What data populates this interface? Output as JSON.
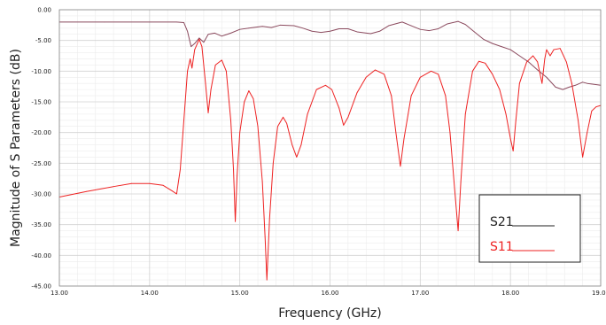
{
  "chart_data": {
    "type": "line",
    "xlabel": "Frequency (GHz)",
    "ylabel": "Magnitude of S Parameters (dB)",
    "xlim": [
      13.0,
      19.0
    ],
    "ylim": [
      -45.0,
      0.0
    ],
    "x_ticks": [
      13.0,
      14.0,
      15.0,
      16.0,
      17.0,
      18.0,
      19.0
    ],
    "x_tick_labels": [
      "13.00",
      "14.00",
      "15.00",
      "16.00",
      "17.00",
      "18.00",
      "19.00"
    ],
    "y_ticks": [
      0,
      -5,
      -10,
      -15,
      -20,
      -25,
      -30,
      -35,
      -40,
      -45
    ],
    "y_tick_labels": [
      "0.00",
      "-5.00",
      "-10.00",
      "-15.00",
      "-20.00",
      "-25.00",
      "-30.00",
      "-35.00",
      "-40.00",
      "-45.00"
    ],
    "grid": true,
    "legend_position": "bottom-right",
    "series": [
      {
        "name": "S21",
        "color": "#8b4a5e",
        "points": [
          [
            13.0,
            -2.0
          ],
          [
            13.5,
            -2.0
          ],
          [
            14.0,
            -2.0
          ],
          [
            14.3,
            -2.0
          ],
          [
            14.38,
            -2.1
          ],
          [
            14.42,
            -3.5
          ],
          [
            14.46,
            -6.0
          ],
          [
            14.5,
            -5.5
          ],
          [
            14.55,
            -4.6
          ],
          [
            14.6,
            -5.3
          ],
          [
            14.65,
            -4.0
          ],
          [
            14.72,
            -3.8
          ],
          [
            14.8,
            -4.3
          ],
          [
            14.9,
            -3.8
          ],
          [
            15.0,
            -3.2
          ],
          [
            15.1,
            -3.0
          ],
          [
            15.25,
            -2.7
          ],
          [
            15.35,
            -2.9
          ],
          [
            15.45,
            -2.5
          ],
          [
            15.6,
            -2.6
          ],
          [
            15.7,
            -3.0
          ],
          [
            15.8,
            -3.5
          ],
          [
            15.9,
            -3.7
          ],
          [
            16.0,
            -3.5
          ],
          [
            16.1,
            -3.1
          ],
          [
            16.2,
            -3.1
          ],
          [
            16.3,
            -3.6
          ],
          [
            16.45,
            -3.9
          ],
          [
            16.55,
            -3.5
          ],
          [
            16.65,
            -2.6
          ],
          [
            16.8,
            -2.0
          ],
          [
            16.9,
            -2.6
          ],
          [
            17.0,
            -3.2
          ],
          [
            17.1,
            -3.4
          ],
          [
            17.2,
            -3.1
          ],
          [
            17.3,
            -2.3
          ],
          [
            17.42,
            -1.9
          ],
          [
            17.5,
            -2.4
          ],
          [
            17.6,
            -3.6
          ],
          [
            17.7,
            -4.8
          ],
          [
            17.8,
            -5.5
          ],
          [
            17.9,
            -6.0
          ],
          [
            18.0,
            -6.5
          ],
          [
            18.1,
            -7.5
          ],
          [
            18.2,
            -8.5
          ],
          [
            18.3,
            -9.8
          ],
          [
            18.4,
            -11.0
          ],
          [
            18.5,
            -12.6
          ],
          [
            18.58,
            -13.0
          ],
          [
            18.65,
            -12.6
          ],
          [
            18.72,
            -12.3
          ],
          [
            18.8,
            -11.8
          ],
          [
            18.85,
            -12.0
          ],
          [
            18.9,
            -12.1
          ],
          [
            19.0,
            -12.3
          ]
        ]
      },
      {
        "name": "S11",
        "color": "#ee2222",
        "points": [
          [
            13.0,
            -30.5
          ],
          [
            13.3,
            -29.6
          ],
          [
            13.6,
            -28.8
          ],
          [
            13.8,
            -28.3
          ],
          [
            14.0,
            -28.3
          ],
          [
            14.15,
            -28.6
          ],
          [
            14.25,
            -29.5
          ],
          [
            14.3,
            -30.0
          ],
          [
            14.34,
            -26.0
          ],
          [
            14.38,
            -18.0
          ],
          [
            14.42,
            -10.0
          ],
          [
            14.45,
            -8.0
          ],
          [
            14.47,
            -9.5
          ],
          [
            14.5,
            -6.5
          ],
          [
            14.55,
            -4.8
          ],
          [
            14.58,
            -6.0
          ],
          [
            14.62,
            -12.0
          ],
          [
            14.65,
            -16.8
          ],
          [
            14.68,
            -13.0
          ],
          [
            14.73,
            -9.0
          ],
          [
            14.8,
            -8.2
          ],
          [
            14.85,
            -10.0
          ],
          [
            14.9,
            -18.0
          ],
          [
            14.93,
            -26.0
          ],
          [
            14.95,
            -34.5
          ],
          [
            14.97,
            -27.0
          ],
          [
            15.0,
            -20.0
          ],
          [
            15.05,
            -15.0
          ],
          [
            15.1,
            -13.2
          ],
          [
            15.15,
            -14.5
          ],
          [
            15.2,
            -19.0
          ],
          [
            15.25,
            -28.0
          ],
          [
            15.28,
            -37.0
          ],
          [
            15.3,
            -44.0
          ],
          [
            15.33,
            -34.0
          ],
          [
            15.37,
            -25.0
          ],
          [
            15.42,
            -19.0
          ],
          [
            15.48,
            -17.5
          ],
          [
            15.52,
            -18.5
          ],
          [
            15.58,
            -22.0
          ],
          [
            15.63,
            -24.0
          ],
          [
            15.68,
            -22.0
          ],
          [
            15.75,
            -17.0
          ],
          [
            15.85,
            -13.0
          ],
          [
            15.95,
            -12.3
          ],
          [
            16.02,
            -13.0
          ],
          [
            16.1,
            -16.0
          ],
          [
            16.15,
            -18.8
          ],
          [
            16.2,
            -17.5
          ],
          [
            16.3,
            -13.5
          ],
          [
            16.4,
            -11.0
          ],
          [
            16.5,
            -9.8
          ],
          [
            16.6,
            -10.5
          ],
          [
            16.68,
            -14.0
          ],
          [
            16.73,
            -20.0
          ],
          [
            16.78,
            -25.5
          ],
          [
            16.82,
            -21.0
          ],
          [
            16.9,
            -14.0
          ],
          [
            17.0,
            -11.0
          ],
          [
            17.12,
            -10.0
          ],
          [
            17.2,
            -10.5
          ],
          [
            17.28,
            -14.0
          ],
          [
            17.33,
            -20.0
          ],
          [
            17.38,
            -29.0
          ],
          [
            17.42,
            -36.0
          ],
          [
            17.45,
            -28.0
          ],
          [
            17.5,
            -17.0
          ],
          [
            17.58,
            -10.0
          ],
          [
            17.65,
            -8.4
          ],
          [
            17.72,
            -8.7
          ],
          [
            17.8,
            -10.5
          ],
          [
            17.88,
            -13.0
          ],
          [
            17.95,
            -17.0
          ],
          [
            18.0,
            -21.0
          ],
          [
            18.03,
            -23.0
          ],
          [
            18.06,
            -18.0
          ],
          [
            18.1,
            -12.0
          ],
          [
            18.18,
            -8.5
          ],
          [
            18.25,
            -7.5
          ],
          [
            18.3,
            -8.5
          ],
          [
            18.35,
            -12.0
          ],
          [
            18.38,
            -8.0
          ],
          [
            18.4,
            -6.5
          ],
          [
            18.44,
            -7.5
          ],
          [
            18.48,
            -6.5
          ],
          [
            18.55,
            -6.3
          ],
          [
            18.62,
            -8.5
          ],
          [
            18.68,
            -12.0
          ],
          [
            18.75,
            -18.0
          ],
          [
            18.8,
            -24.0
          ],
          [
            18.85,
            -20.0
          ],
          [
            18.9,
            -16.5
          ],
          [
            18.95,
            -15.8
          ],
          [
            19.0,
            -15.6
          ]
        ]
      }
    ]
  }
}
